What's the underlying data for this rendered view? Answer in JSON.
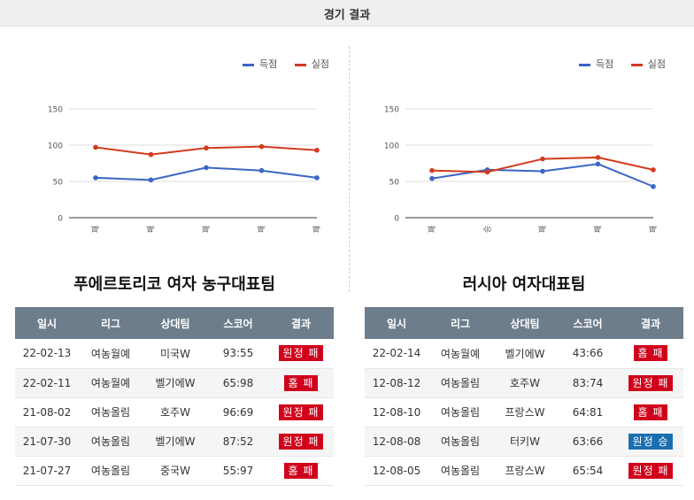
{
  "header": {
    "title": "경기 결과"
  },
  "legend": {
    "scored": "득점",
    "conceded": "실점"
  },
  "colors": {
    "scored": "#3a66c4",
    "conceded": "#d23b1d",
    "loss": "#d0021b",
    "win": "#1a6fb0",
    "header": "#6d7d8c"
  },
  "chart_data": [
    {
      "type": "line",
      "categories": [
        "패",
        "패",
        "패",
        "패",
        "패"
      ],
      "series": [
        {
          "name": "득점",
          "values": [
            55,
            52,
            69,
            65,
            55
          ]
        },
        {
          "name": "실점",
          "values": [
            97,
            87,
            96,
            98,
            93
          ]
        }
      ],
      "ylim": [
        0,
        150
      ],
      "yticks": [
        0,
        50,
        100,
        150
      ],
      "grid": true,
      "legend_position": "top-right"
    },
    {
      "type": "line",
      "categories": [
        "패",
        "승",
        "패",
        "패",
        "패"
      ],
      "series": [
        {
          "name": "득점",
          "values": [
            54,
            66,
            64,
            74,
            43
          ]
        },
        {
          "name": "실점",
          "values": [
            65,
            63,
            81,
            83,
            66
          ]
        }
      ],
      "ylim": [
        0,
        150
      ],
      "yticks": [
        0,
        50,
        100,
        150
      ],
      "grid": true,
      "legend_position": "top-right"
    }
  ],
  "teams": {
    "left": {
      "name": "푸에르토리코 여자 농구대표팀"
    },
    "right": {
      "name": "러시아 여자대표팀"
    }
  },
  "table_headers": [
    "일시",
    "리그",
    "상대팀",
    "스코어",
    "결과"
  ],
  "tables": {
    "left": [
      {
        "date": "22-02-13",
        "league": "여농월예",
        "opponent": "미국W",
        "score": "93:55",
        "result": "원정 패",
        "outcome": "loss"
      },
      {
        "date": "22-02-11",
        "league": "여농월예",
        "opponent": "벨기에W",
        "score": "65:98",
        "result": "홈 패",
        "outcome": "loss"
      },
      {
        "date": "21-08-02",
        "league": "여농올림",
        "opponent": "호주W",
        "score": "96:69",
        "result": "원정 패",
        "outcome": "loss"
      },
      {
        "date": "21-07-30",
        "league": "여농올림",
        "opponent": "벨기에W",
        "score": "87:52",
        "result": "원정 패",
        "outcome": "loss"
      },
      {
        "date": "21-07-27",
        "league": "여농올림",
        "opponent": "중국W",
        "score": "55:97",
        "result": "홈 패",
        "outcome": "loss"
      }
    ],
    "right": [
      {
        "date": "22-02-14",
        "league": "여농월예",
        "opponent": "벨기에W",
        "score": "43:66",
        "result": "홈 패",
        "outcome": "loss"
      },
      {
        "date": "12-08-12",
        "league": "여농올림",
        "opponent": "호주W",
        "score": "83:74",
        "result": "원정 패",
        "outcome": "loss"
      },
      {
        "date": "12-08-10",
        "league": "여농올림",
        "opponent": "프랑스W",
        "score": "64:81",
        "result": "홈 패",
        "outcome": "loss"
      },
      {
        "date": "12-08-08",
        "league": "여농올림",
        "opponent": "터키W",
        "score": "63:66",
        "result": "원정 승",
        "outcome": "win"
      },
      {
        "date": "12-08-05",
        "league": "여농올림",
        "opponent": "프랑스W",
        "score": "65:54",
        "result": "원정 패",
        "outcome": "loss"
      }
    ]
  }
}
